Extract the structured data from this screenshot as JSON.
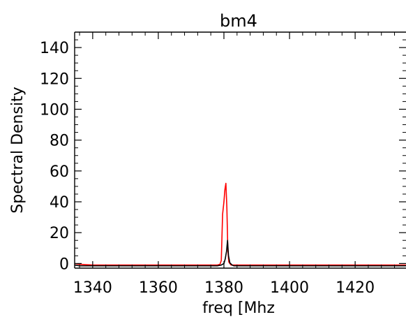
{
  "chart_data": {
    "type": "line",
    "title": "bm4",
    "xlabel": "freq [Mhz",
    "ylabel": "Spectral Density",
    "xlim": [
      1334.5,
      1435.5
    ],
    "ylim": [
      -3,
      150
    ],
    "xticks": [
      1340,
      1360,
      1380,
      1400,
      1420
    ],
    "yticks": [
      0,
      20,
      40,
      60,
      80,
      100,
      120,
      140
    ],
    "grid": false,
    "series": [
      {
        "color": "#ff0000",
        "x": [
          1334.5,
          1336,
          1340,
          1360,
          1376,
          1378,
          1378.8,
          1379.2,
          1379.6,
          1380.0,
          1380.3,
          1380.6,
          1380.9,
          1381.2,
          1381.5,
          1381.8,
          1382.2,
          1383,
          1390,
          1400,
          1420,
          1435.5
        ],
        "y": [
          0,
          -0.5,
          -1,
          -1,
          -1,
          -1,
          -0.5,
          2,
          32,
          40,
          48,
          52,
          36,
          8,
          1,
          0,
          -1,
          -1,
          -1,
          -1,
          -1,
          -1
        ]
      },
      {
        "color": "#000000",
        "x": [
          1334.5,
          1336,
          1340,
          1360,
          1378,
          1379.2,
          1380.0,
          1380.4,
          1380.8,
          1381.1,
          1381.4,
          1381.8,
          1382.5,
          1383,
          1400,
          1420,
          1435.5
        ],
        "y": [
          -1,
          -1.5,
          -1.5,
          -1.5,
          -1.5,
          -1,
          0,
          3,
          8,
          15,
          5,
          0.5,
          -1,
          -1.5,
          -1.5,
          -1.5,
          -1.5
        ]
      }
    ]
  }
}
